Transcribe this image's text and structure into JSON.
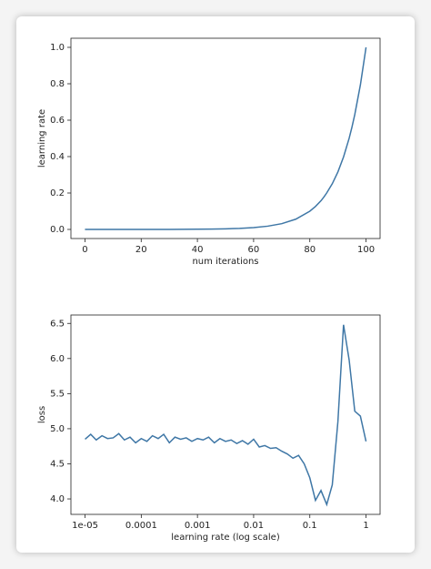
{
  "chart_data": [
    {
      "type": "line",
      "xlabel": "num iterations",
      "ylabel": "learning rate",
      "color": "#3f77a6",
      "x": [
        0,
        5,
        10,
        15,
        20,
        25,
        30,
        35,
        40,
        45,
        50,
        55,
        60,
        65,
        70,
        75,
        80,
        82,
        84,
        85,
        86,
        88,
        90,
        92,
        94,
        95,
        96,
        98,
        100
      ],
      "values": [
        1e-05,
        1.78e-05,
        3.16e-05,
        5.62e-05,
        0.0001,
        0.000178,
        0.000316,
        0.000562,
        0.001,
        0.00178,
        0.00316,
        0.00562,
        0.01,
        0.0178,
        0.0316,
        0.0562,
        0.1,
        0.126,
        0.158,
        0.178,
        0.2,
        0.251,
        0.316,
        0.398,
        0.501,
        0.562,
        0.631,
        0.794,
        1
      ],
      "xlim": [
        -5,
        105
      ],
      "xticks": [
        0,
        20,
        40,
        60,
        80,
        100
      ],
      "ylim": [
        -0.05,
        1.05
      ],
      "yticks": [
        {
          "value": 0,
          "label": "0.0"
        },
        0.2,
        0.4,
        0.6,
        0.8,
        {
          "value": 1,
          "label": "1.0"
        }
      ]
    },
    {
      "type": "line",
      "xlabel": "learning rate (log scale)",
      "ylabel": "loss",
      "color": "#3f77a6",
      "xscale": "log",
      "x": [
        1e-05,
        1.26e-05,
        1.58e-05,
        2e-05,
        2.51e-05,
        3.16e-05,
        3.98e-05,
        5.01e-05,
        6.31e-05,
        7.94e-05,
        0.0001,
        0.000126,
        0.000158,
        0.0002,
        0.000251,
        0.000316,
        0.000398,
        0.000501,
        0.000631,
        0.000794,
        0.001,
        0.00126,
        0.00158,
        0.002,
        0.00251,
        0.00316,
        0.00398,
        0.00501,
        0.00631,
        0.00794,
        0.01,
        0.0126,
        0.0158,
        0.02,
        0.0251,
        0.0316,
        0.0398,
        0.0501,
        0.0631,
        0.0794,
        0.1,
        0.126,
        0.158,
        0.2,
        0.251,
        0.316,
        0.398,
        0.501,
        0.631,
        0.794,
        1
      ],
      "values": [
        4.85,
        4.92,
        4.84,
        4.9,
        4.86,
        4.87,
        4.93,
        4.84,
        4.88,
        4.8,
        4.86,
        4.82,
        4.9,
        4.86,
        4.92,
        4.8,
        4.88,
        4.85,
        4.87,
        4.82,
        4.86,
        4.84,
        4.88,
        4.8,
        4.86,
        4.82,
        4.84,
        4.79,
        4.83,
        4.78,
        4.85,
        4.74,
        4.76,
        4.72,
        4.73,
        4.68,
        4.64,
        4.58,
        4.62,
        4.5,
        4.3,
        3.98,
        4.12,
        3.92,
        4.2,
        5.1,
        6.48,
        5.98,
        5.25,
        5.18,
        4.82
      ],
      "xlim": [
        5.6e-06,
        1.78
      ],
      "xticks": [
        {
          "value": 1e-05,
          "label": "1e-05"
        },
        0.0001,
        0.001,
        0.01,
        0.1,
        1
      ],
      "ylim": [
        3.78,
        6.62
      ],
      "yticks": [
        {
          "value": 4,
          "label": "4.0"
        },
        4.5,
        {
          "value": 5,
          "label": "5.0"
        },
        5.5,
        {
          "value": 6,
          "label": "6.0"
        },
        6.5
      ]
    }
  ]
}
